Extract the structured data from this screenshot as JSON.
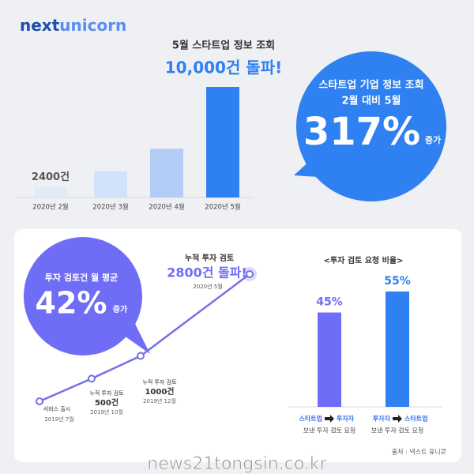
{
  "logo": {
    "part1": "next",
    "part2": "unicorn"
  },
  "chart_data": [
    {
      "type": "bar",
      "title": "5월 스타트업 정보 조회",
      "subtitle": "10,000건 돌파!",
      "categories": [
        "2020년 2월",
        "2020년 3월",
        "2020년 4월",
        "2020년 5월"
      ],
      "values": [
        2400,
        3600,
        5300,
        10000
      ],
      "value_labels": [
        "2400건",
        null,
        null,
        null
      ],
      "colors": [
        "#e3ebf7",
        "#d3e2fb",
        "#b3cdf6",
        "#2f80f0"
      ],
      "ylim": [
        1600,
        10000
      ]
    },
    {
      "type": "line",
      "title": "누적 투자 검토",
      "subtitle": "2800건 돌파!",
      "categories": [
        "2019년 7월",
        "2019년 10월",
        "2019년 12월",
        "2020년 5월"
      ],
      "values": [
        0,
        500,
        1000,
        2800
      ],
      "value_labels": [
        null,
        "500건",
        "1000건",
        null
      ],
      "point_notes": [
        "서비스 출시",
        "누적 투자 검토",
        "누적 투자 검토",
        null
      ],
      "color": "#7670e8",
      "ylim": [
        0,
        2800
      ]
    },
    {
      "type": "bar",
      "title": "<투자 검토 요청 비율>",
      "categories": [
        "보낸 투자 검토 요청",
        "보낸 투자 검토 요청"
      ],
      "flows": [
        [
          "스타트업",
          "투자자"
        ],
        [
          "투자자",
          "스타트업"
        ]
      ],
      "values": [
        45,
        55
      ],
      "value_labels": [
        "45%",
        "55%"
      ],
      "colors": [
        "#6f6cf5",
        "#2f80f0"
      ],
      "ylim": [
        0,
        55
      ]
    }
  ],
  "callouts": [
    {
      "line1": "스타트업 기업 정보 조회",
      "line2": "2월 대비 5월",
      "value": "317%",
      "suffix": "증가"
    },
    {
      "line1": "투자 검토건 월 평균",
      "value": "42%",
      "suffix": "증가"
    }
  ],
  "source": "출처 : 넥스트 유니콘",
  "watermark": "news21tongsin.co.kr"
}
